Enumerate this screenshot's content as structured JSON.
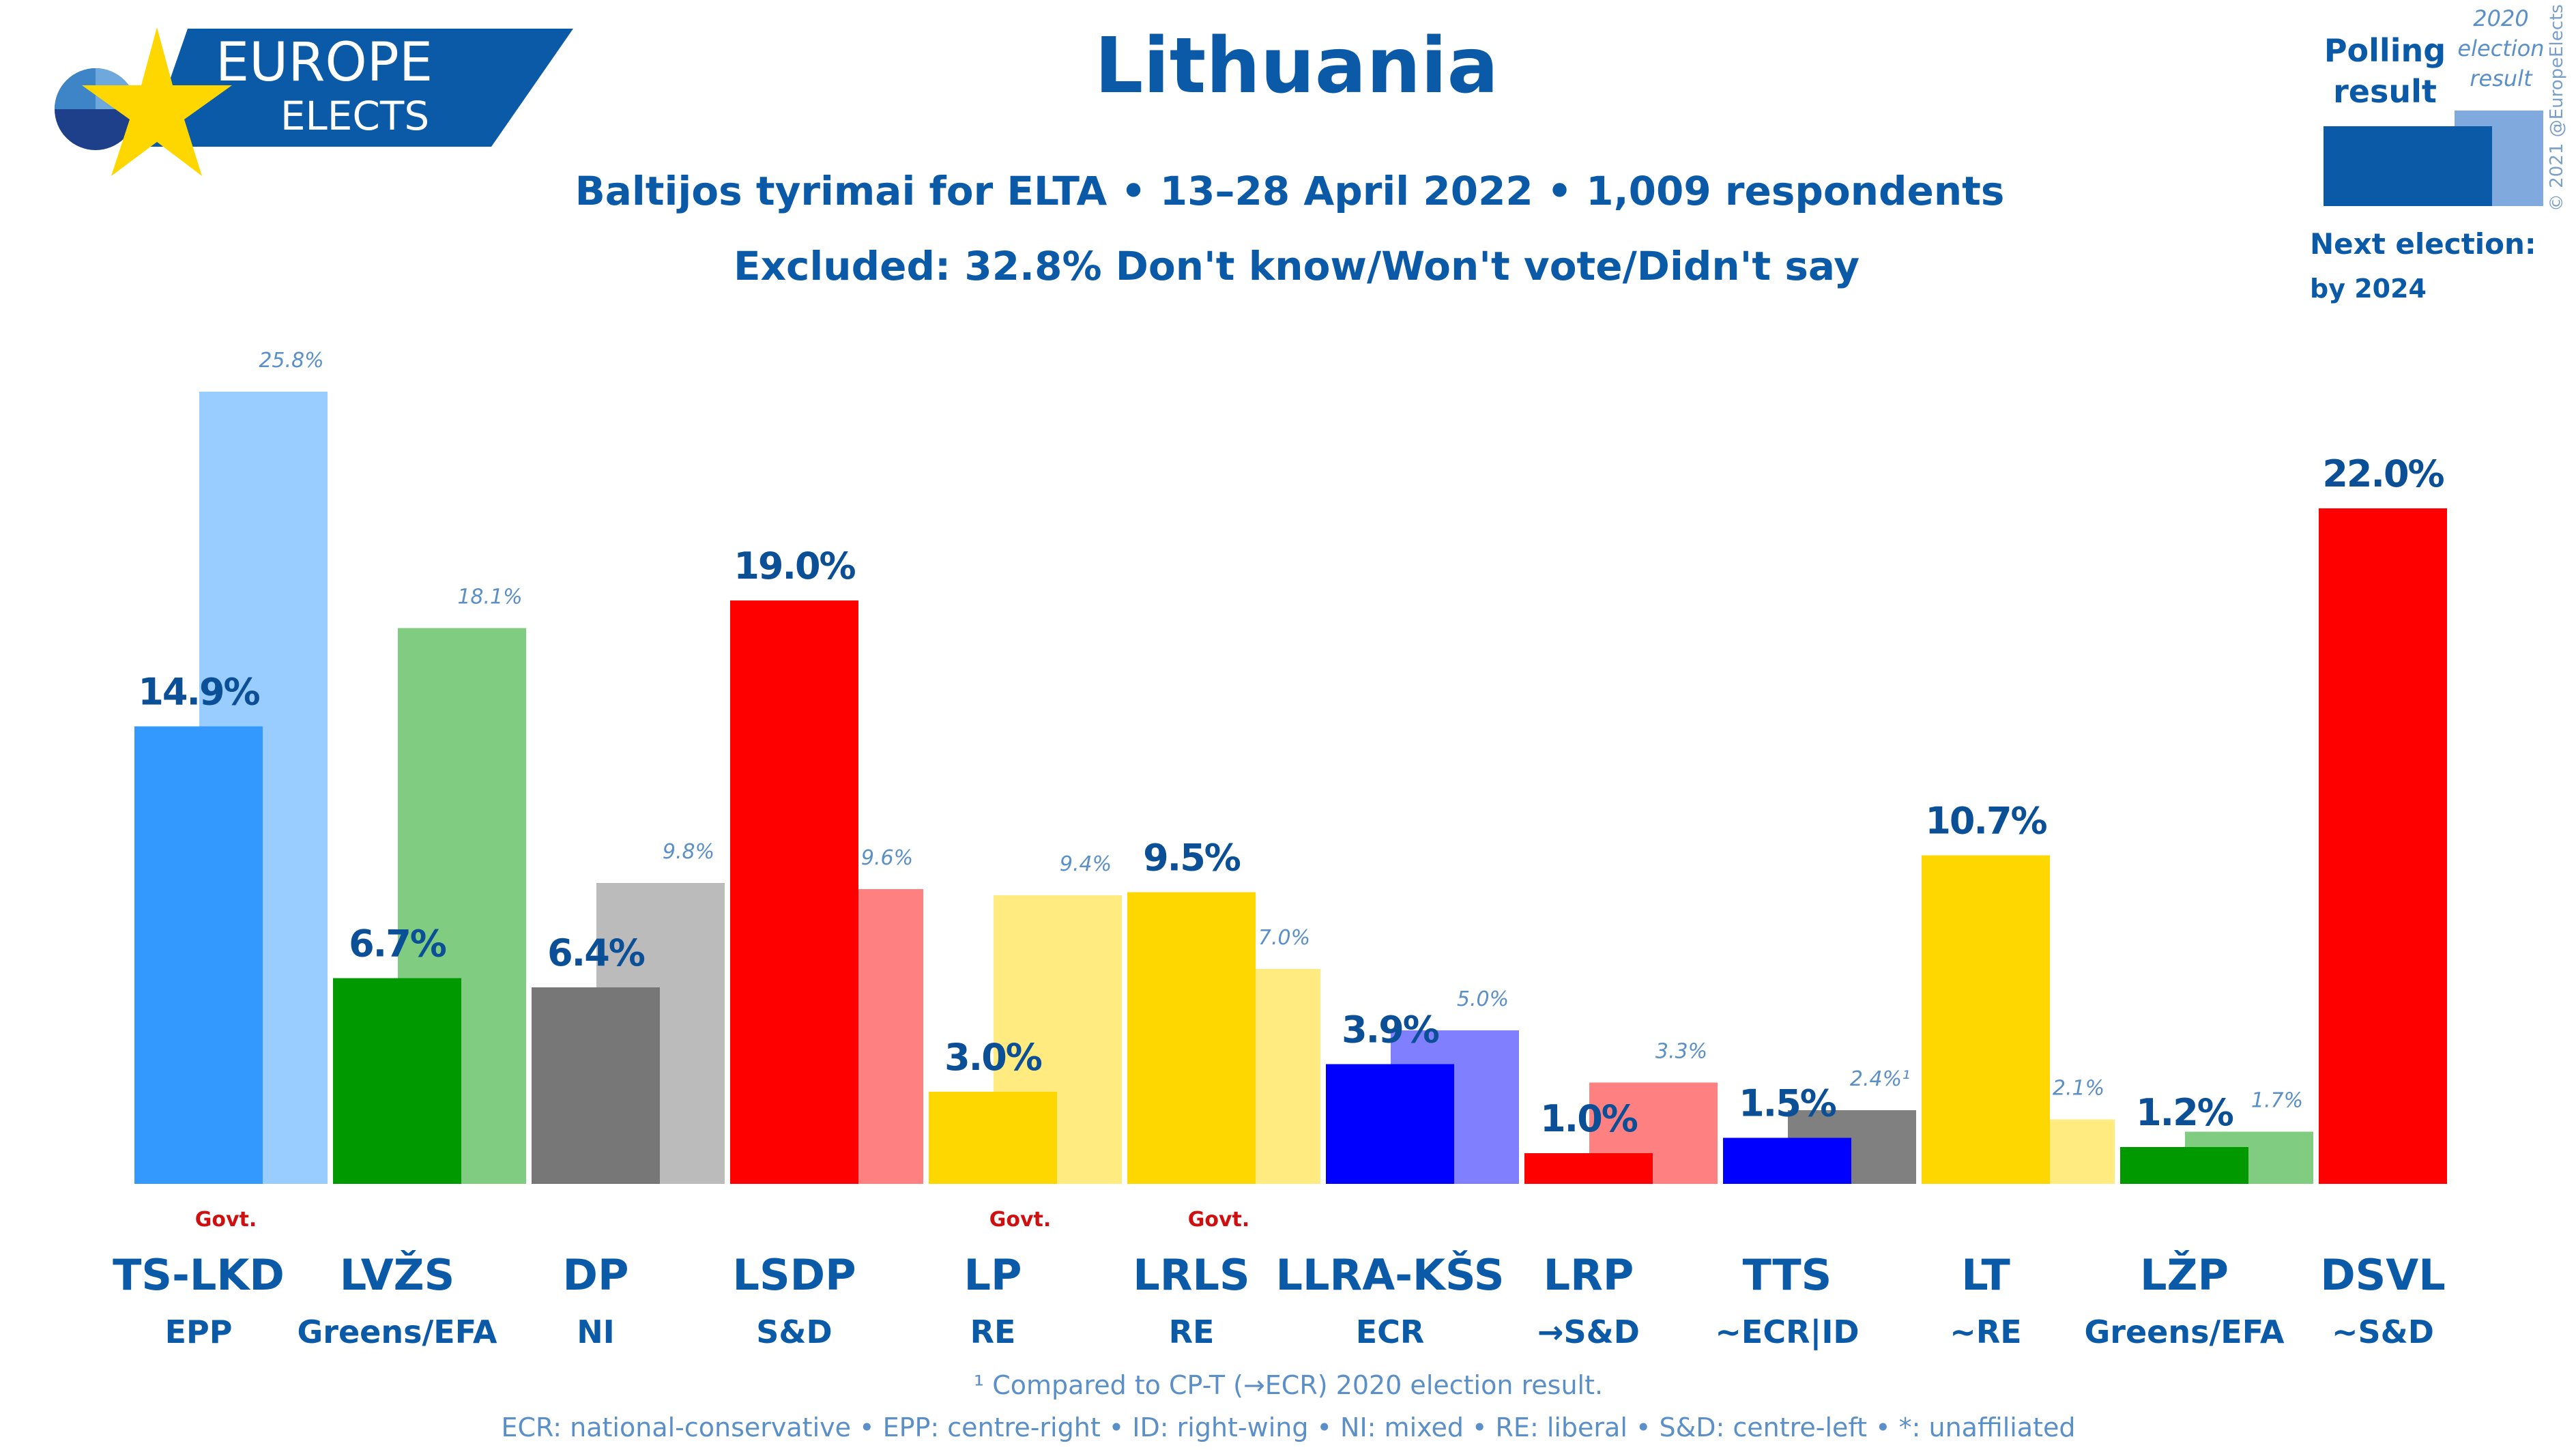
{
  "header": {
    "logo_line1": "EUROPE",
    "logo_line2": "ELECTS",
    "title": "Lithuania",
    "subtitle1": "Baltijos tyrimai for ELTA • 13–28 April 2022 • 1,009 respondents",
    "subtitle2": "Excluded: 32.8% Don't know/Won't vote/Didn't say"
  },
  "legend": {
    "poll_line1": "Polling",
    "poll_line2": "result",
    "prev_line1": "2020",
    "prev_line2": "election",
    "prev_line3": "result",
    "next_line1": "Next election:",
    "next_line2": "by 2024",
    "copyright": "© 2021 @EuropeElects"
  },
  "footer": {
    "note1": "¹ Compared to CP-T (→ECR) 2020 election result.",
    "note2": "ECR: national-conservative • EPP: centre-right • ID: right-wing • NI: mixed • RE: liberal • S&D: centre-left • *: unaffiliated"
  },
  "colors": {
    "text": "#0b5aa8",
    "govt": "#d01010",
    "logo_bg": "#0b5aa8"
  },
  "chart_data": {
    "type": "bar",
    "categories": [
      "TS-LKD",
      "LVŽS",
      "DP",
      "LSDP",
      "LP",
      "LRLS",
      "LLRA-KŠS",
      "LRP",
      "TTS",
      "LT",
      "LŽP",
      "DSVL"
    ],
    "groups": [
      "EPP",
      "Greens/EFA",
      "NI",
      "S&D",
      "RE",
      "RE",
      "ECR",
      "→S&D",
      "~ECR|ID",
      "~RE",
      "Greens/EFA",
      "~S&D"
    ],
    "government": [
      true,
      false,
      false,
      false,
      true,
      true,
      false,
      false,
      false,
      false,
      false,
      false
    ],
    "series": [
      {
        "name": "Polling result",
        "values": [
          14.9,
          6.7,
          6.4,
          19.0,
          3.0,
          9.5,
          3.9,
          1.0,
          1.5,
          10.7,
          1.2,
          22.0
        ],
        "labels": [
          "14.9%",
          "6.7%",
          "6.4%",
          "19.0%",
          "3.0%",
          "9.5%",
          "3.9%",
          "1.0%",
          "1.5%",
          "10.7%",
          "1.2%",
          "22.0%"
        ],
        "colors": [
          "#3399ff",
          "#009900",
          "#777777",
          "#ff0000",
          "#ffd700",
          "#ffd700",
          "#0000ff",
          "#ff0000",
          "#0000ff",
          "#ffd700",
          "#009900",
          "#ff0000"
        ]
      },
      {
        "name": "2020 election result",
        "values": [
          25.8,
          18.1,
          9.8,
          9.6,
          9.4,
          7.0,
          5.0,
          3.3,
          2.4,
          2.1,
          1.7,
          null
        ],
        "labels": [
          "25.8%",
          "18.1%",
          "9.8%",
          "9.6%",
          "9.4%",
          "7.0%",
          "5.0%",
          "3.3%",
          "2.4%¹",
          "2.1%",
          "1.7%",
          ""
        ],
        "colors": [
          "#99ccff",
          "#80cc80",
          "#bbbbbb",
          "#ff8080",
          "#ffeb80",
          "#ffeb80",
          "#8080ff",
          "#ff8080",
          "#808080",
          "#ffeb80",
          "#80cc80",
          ""
        ]
      }
    ],
    "ylim": [
      0,
      26
    ]
  }
}
